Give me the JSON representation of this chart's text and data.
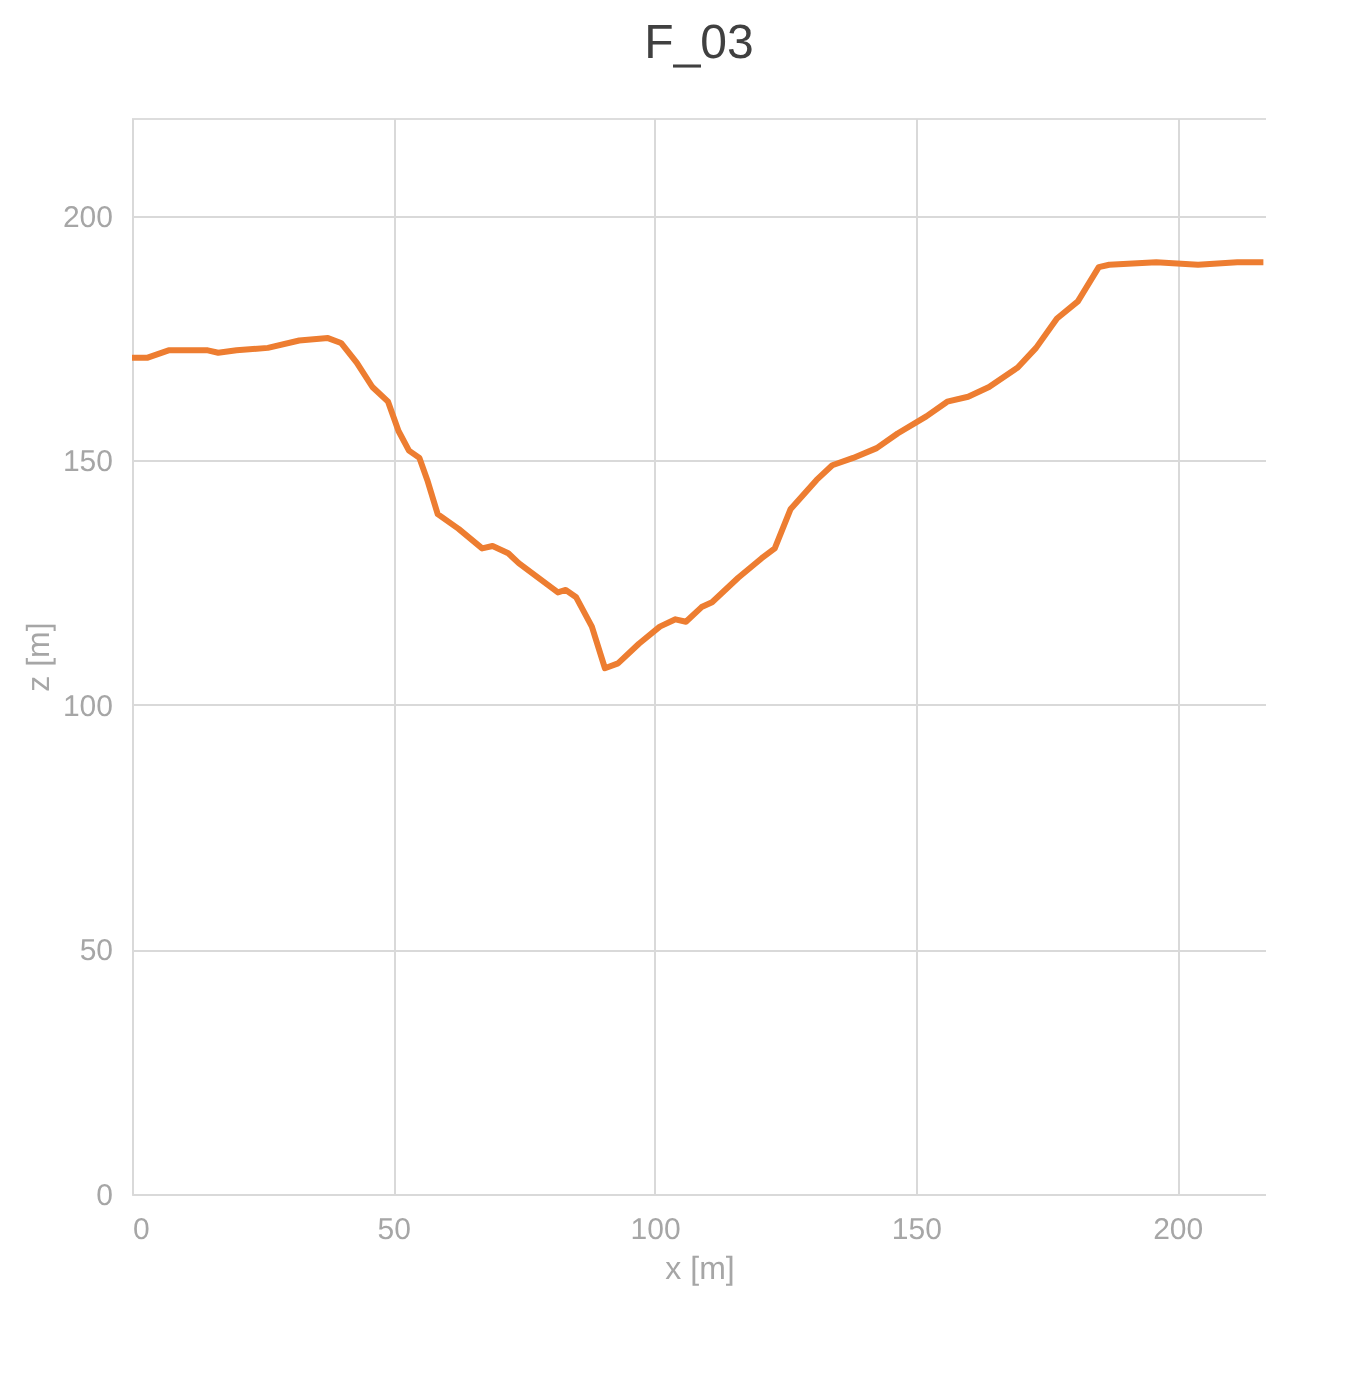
{
  "chart_data": {
    "type": "line",
    "title": "F_03",
    "xlabel": "x [m]",
    "ylabel": "z [m]",
    "xlim": [
      0,
      217
    ],
    "xticks": [
      0,
      50,
      100,
      150,
      200
    ],
    "ylim": [
      0,
      220
    ],
    "yticks": [
      0,
      50,
      100,
      150,
      200
    ],
    "grid": true,
    "line_style": "solid",
    "series": [
      {
        "color": "#ed7d31",
        "x": [
          0,
          3,
          7,
          14.5,
          16.5,
          20,
          26,
          32,
          37.5,
          40,
          43,
          46,
          49,
          51,
          53,
          55,
          56.5,
          58.5,
          62.5,
          67,
          69,
          72,
          74,
          81.5,
          83,
          85,
          88,
          90.5,
          93,
          97,
          101,
          104,
          106,
          109,
          111,
          116,
          120.5,
          123,
          126,
          131,
          134,
          138,
          142.5,
          146.5,
          152,
          156,
          160,
          164,
          169.5,
          173,
          177,
          181,
          185,
          187,
          196,
          204,
          211.5,
          216.5
        ],
        "values": [
          171,
          171,
          172.5,
          172.5,
          172,
          172.5,
          173,
          174.5,
          175,
          174,
          170,
          165,
          162,
          156,
          152,
          150.5,
          146,
          139,
          136,
          132,
          132.5,
          131,
          129,
          123,
          123.5,
          122,
          116,
          107.5,
          108.5,
          112.5,
          116,
          117.5,
          117,
          120,
          121,
          126,
          130,
          132,
          140,
          146,
          149,
          150.5,
          152.5,
          155.5,
          159,
          162,
          163,
          165,
          169,
          173,
          179,
          182.5,
          189.5,
          190,
          190.5,
          190,
          190.5,
          190.5
        ]
      }
    ]
  }
}
